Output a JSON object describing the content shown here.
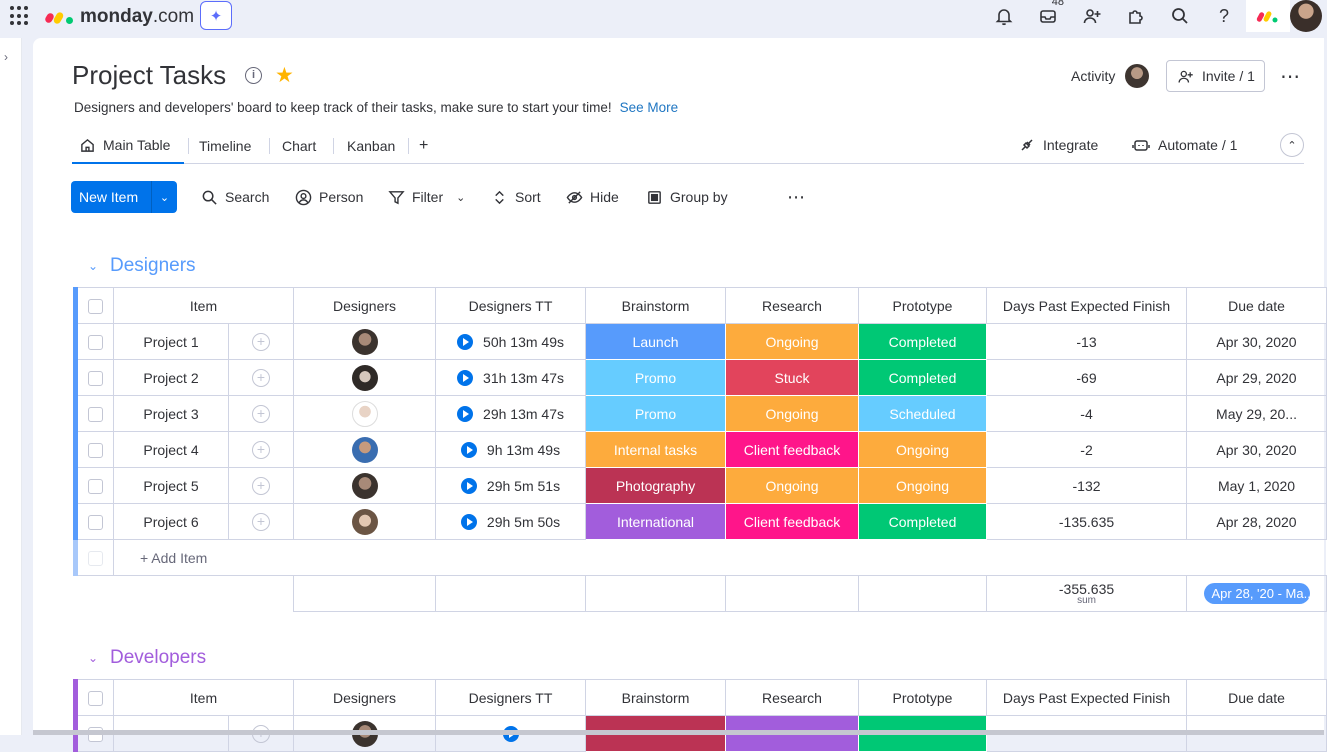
{
  "app": {
    "name_a": "monday",
    "name_b": ".com",
    "notification_count": "48"
  },
  "board": {
    "title": "Project Tasks",
    "description": "Designers and developers' board to keep track of their tasks, make sure to start your time!",
    "see_more": "See More",
    "activity_label": "Activity",
    "invite_label": "Invite / 1"
  },
  "tabs": {
    "main": "Main Table",
    "timeline": "Timeline",
    "chart": "Chart",
    "kanban": "Kanban",
    "add": "+"
  },
  "tab_actions": {
    "integrate": "Integrate",
    "automate": "Automate / 1"
  },
  "toolbar": {
    "new_item": "New Item",
    "search": "Search",
    "person": "Person",
    "filter": "Filter",
    "sort": "Sort",
    "hide": "Hide",
    "group_by": "Group by"
  },
  "columns": {
    "item": "Item",
    "designers": "Designers",
    "designers_tt": "Designers TT",
    "brainstorm": "Brainstorm",
    "research": "Research",
    "prototype": "Prototype",
    "days_past": "Days Past Expected Finish",
    "due_date": "Due date"
  },
  "colors": {
    "accent": "#0073ea",
    "designers_group": "#579bfc",
    "developers_group": "#a25ddc"
  },
  "groups": {
    "designers": {
      "name": "Designers",
      "add_item": "+ Add Item",
      "rows": [
        {
          "item": "Project 1",
          "tt": "50h 13m 49s",
          "brainstorm": "Launch",
          "research": "Ongoing",
          "prototype": "Completed",
          "days": "-13",
          "due": "Apr 30, 2020"
        },
        {
          "item": "Project 2",
          "tt": "31h 13m 47s",
          "brainstorm": "Promo",
          "research": "Stuck",
          "prototype": "Completed",
          "days": "-69",
          "due": "Apr 29, 2020"
        },
        {
          "item": "Project 3",
          "tt": "29h 13m 47s",
          "brainstorm": "Promo",
          "research": "Ongoing",
          "prototype": "Scheduled",
          "days": "-4",
          "due": "May 29, 20..."
        },
        {
          "item": "Project 4",
          "tt": "9h 13m 49s",
          "brainstorm": "Internal tasks",
          "research": "Client feedback",
          "prototype": "Ongoing",
          "days": "-2",
          "due": "Apr 30, 2020"
        },
        {
          "item": "Project 5",
          "tt": "29h 5m 51s",
          "brainstorm": "Photography",
          "research": "Ongoing",
          "prototype": "Ongoing",
          "days": "-132",
          "due": "May 1, 2020"
        },
        {
          "item": "Project 6",
          "tt": "29h 5m 50s",
          "brainstorm": "International",
          "research": "Client feedback",
          "prototype": "Completed",
          "days": "-135.635",
          "due": "Apr 28, 2020"
        }
      ],
      "sum_value": "-355.635",
      "sum_label": "sum",
      "date_range": "Apr 28, '20 - Ma..."
    },
    "developers": {
      "name": "Developers"
    }
  }
}
